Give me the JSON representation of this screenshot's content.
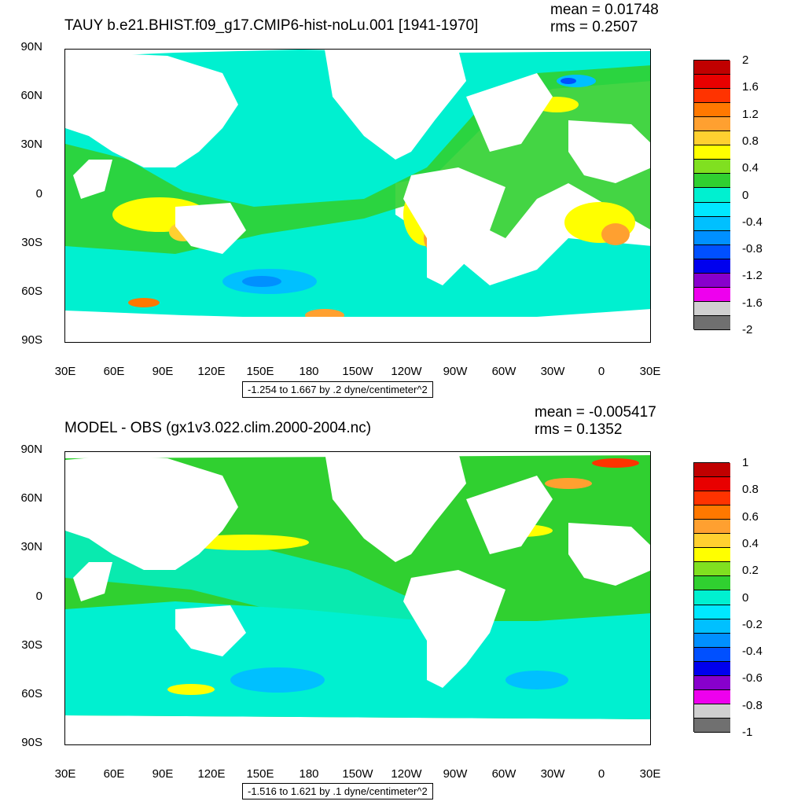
{
  "panels": [
    {
      "title": "TAUY b.e21.BHIST.f09_g17.CMIP6-hist-noLu.001 [1941-1970]",
      "mean": "mean = 0.01748",
      "rms": "rms = 0.2507",
      "caption": "-1.254 to 1.667 by .2 dyne/centimeter^2",
      "colorbar_labels": [
        "2",
        "1.6",
        "1.2",
        "0.8",
        "0.4",
        "0",
        "-0.4",
        "-0.8",
        "-1.2",
        "-1.6",
        "-2"
      ],
      "colorbar_colors": [
        "#c00000",
        "#e80000",
        "#ff3300",
        "#ff7800",
        "#ffa030",
        "#ffd030",
        "#ffff00",
        "#80e020",
        "#30d030",
        "#00f0d0",
        "#00e8ff",
        "#00c0ff",
        "#0090ff",
        "#0050ff",
        "#0000ee",
        "#8800cc",
        "#ee00ee",
        "#d0d0d0",
        "#707070"
      ]
    },
    {
      "title": "MODEL - OBS (gx1v3.022.clim.2000-2004.nc)",
      "mean": "mean = -0.005417",
      "rms": "rms = 0.1352",
      "caption": "-1.516 to 1.621 by .1 dyne/centimeter^2",
      "colorbar_labels": [
        "1",
        "0.8",
        "0.6",
        "0.4",
        "0.2",
        "0",
        "-0.2",
        "-0.4",
        "-0.6",
        "-0.8",
        "-1"
      ],
      "colorbar_colors": [
        "#c00000",
        "#e80000",
        "#ff3300",
        "#ff7800",
        "#ffa030",
        "#ffd030",
        "#ffff00",
        "#80e020",
        "#30d030",
        "#00f0d0",
        "#00e8ff",
        "#00c0ff",
        "#0090ff",
        "#0050ff",
        "#0000ee",
        "#8800cc",
        "#ee00ee",
        "#d0d0d0",
        "#707070"
      ]
    }
  ],
  "lat_labels": [
    "90N",
    "60N",
    "30N",
    "0",
    "30S",
    "60S",
    "90S"
  ],
  "lon_labels": [
    "30E",
    "60E",
    "90E",
    "120E",
    "150E",
    "180",
    "150W",
    "120W",
    "90W",
    "60W",
    "30W",
    "0",
    "30E"
  ]
}
